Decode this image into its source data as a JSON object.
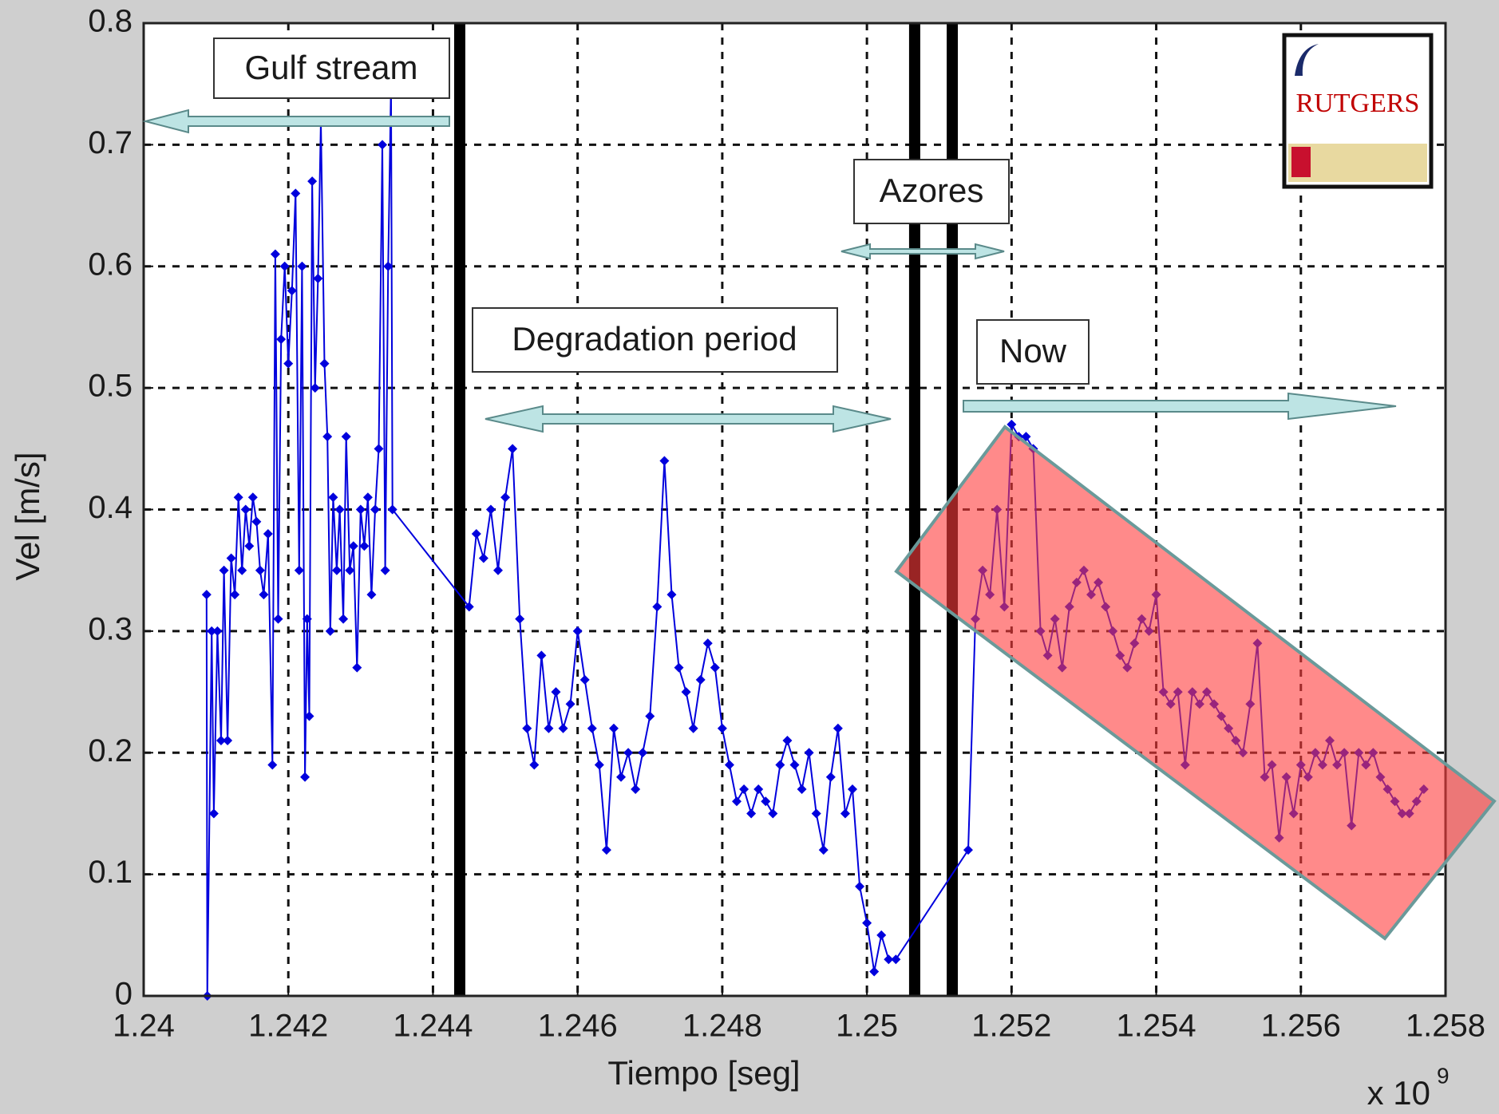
{
  "chart_data": {
    "type": "line",
    "xlabel": "Tiempo [seg]",
    "ylabel": "Vel [m/s]",
    "x_multiplier": {
      "base": "x 10",
      "exponent": "9"
    },
    "xlim": [
      1.24,
      1.258
    ],
    "ylim": [
      0,
      0.8
    ],
    "xticks": [
      1.24,
      1.242,
      1.244,
      1.246,
      1.248,
      1.25,
      1.252,
      1.254,
      1.256,
      1.258
    ],
    "yticks": [
      0,
      0.1,
      0.2,
      0.3,
      0.4,
      0.5,
      0.6,
      0.7,
      0.8
    ],
    "grid": true,
    "annotations": [
      "Gulf stream",
      "Degradation period",
      "Azores",
      "Now"
    ],
    "logo_text": "RUTGERS",
    "vlines": [
      1.24437,
      1.25066,
      1.25118
    ],
    "series": [
      {
        "name": "Vel",
        "color": "#0000dd",
        "x": [
          1.24087,
          1.24088,
          1.24094,
          1.24097,
          1.24102,
          1.24107,
          1.24111,
          1.24116,
          1.24121,
          1.24126,
          1.24131,
          1.24136,
          1.24141,
          1.24146,
          1.24151,
          1.24156,
          1.24161,
          1.24166,
          1.24172,
          1.24178,
          1.24182,
          1.24186,
          1.2419,
          1.24195,
          1.242,
          1.24205,
          1.2421,
          1.24215,
          1.24219,
          1.24223,
          1.24226,
          1.24229,
          1.24233,
          1.24237,
          1.24241,
          1.24245,
          1.2425,
          1.24254,
          1.24258,
          1.24262,
          1.24267,
          1.24271,
          1.24276,
          1.2428,
          1.24285,
          1.2429,
          1.24295,
          1.243,
          1.24305,
          1.2431,
          1.24315,
          1.2432,
          1.24325,
          1.2433,
          1.24334,
          1.24338,
          1.24342,
          1.24344,
          1.2445,
          1.2446,
          1.2447,
          1.2448,
          1.2449,
          1.245,
          1.2451,
          1.2452,
          1.2453,
          1.2454,
          1.2455,
          1.2456,
          1.2457,
          1.2458,
          1.2459,
          1.246,
          1.2461,
          1.2462,
          1.2463,
          1.2464,
          1.2465,
          1.2466,
          1.2467,
          1.2468,
          1.2469,
          1.247,
          1.2471,
          1.2472,
          1.2473,
          1.2474,
          1.2475,
          1.2476,
          1.2477,
          1.2478,
          1.2479,
          1.248,
          1.2481,
          1.2482,
          1.2483,
          1.2484,
          1.2485,
          1.2486,
          1.2487,
          1.2488,
          1.2489,
          1.249,
          1.2491,
          1.2492,
          1.2493,
          1.2494,
          1.2495,
          1.2496,
          1.2497,
          1.2498,
          1.2499,
          1.25,
          1.2501,
          1.2502,
          1.2503,
          1.2504,
          1.2514,
          1.2515,
          1.2516,
          1.2517,
          1.2518,
          1.2519,
          1.252,
          1.2521,
          1.2522,
          1.2523,
          1.2524,
          1.2525,
          1.2526,
          1.2527,
          1.2528,
          1.2529,
          1.253,
          1.2531,
          1.2532,
          1.2533,
          1.2534,
          1.2535,
          1.2536,
          1.2537,
          1.2538,
          1.2539,
          1.254,
          1.2541,
          1.2542,
          1.2543,
          1.2544,
          1.2545,
          1.2546,
          1.2547,
          1.2548,
          1.2549,
          1.255,
          1.2551,
          1.2552,
          1.2553,
          1.2554,
          1.2555,
          1.2556,
          1.2557,
          1.2558,
          1.2559,
          1.256,
          1.2561,
          1.2562,
          1.2563,
          1.2564,
          1.2565,
          1.2566,
          1.2567,
          1.2568,
          1.2569,
          1.257,
          1.2571,
          1.2572,
          1.2573,
          1.2574,
          1.2575,
          1.2576,
          1.2577
        ],
        "values": [
          0.33,
          0,
          0.3,
          0.15,
          0.3,
          0.21,
          0.35,
          0.21,
          0.36,
          0.33,
          0.41,
          0.35,
          0.4,
          0.37,
          0.41,
          0.39,
          0.35,
          0.33,
          0.38,
          0.19,
          0.61,
          0.31,
          0.54,
          0.6,
          0.52,
          0.58,
          0.66,
          0.35,
          0.6,
          0.18,
          0.31,
          0.23,
          0.67,
          0.5,
          0.59,
          0.72,
          0.52,
          0.46,
          0.3,
          0.41,
          0.35,
          0.4,
          0.31,
          0.46,
          0.35,
          0.37,
          0.27,
          0.4,
          0.37,
          0.41,
          0.33,
          0.4,
          0.45,
          0.7,
          0.35,
          0.6,
          0.75,
          0.4,
          0.32,
          0.38,
          0.36,
          0.4,
          0.35,
          0.41,
          0.45,
          0.31,
          0.22,
          0.19,
          0.28,
          0.22,
          0.25,
          0.22,
          0.24,
          0.3,
          0.26,
          0.22,
          0.19,
          0.12,
          0.22,
          0.18,
          0.2,
          0.17,
          0.2,
          0.23,
          0.32,
          0.44,
          0.33,
          0.27,
          0.25,
          0.22,
          0.26,
          0.29,
          0.27,
          0.22,
          0.19,
          0.16,
          0.17,
          0.15,
          0.17,
          0.16,
          0.15,
          0.19,
          0.21,
          0.19,
          0.17,
          0.2,
          0.15,
          0.12,
          0.18,
          0.22,
          0.15,
          0.17,
          0.09,
          0.06,
          0.02,
          0.05,
          0.03,
          0.03,
          0.12,
          0.31,
          0.35,
          0.33,
          0.4,
          0.32,
          0.47,
          0.46,
          0.46,
          0.45,
          0.3,
          0.28,
          0.31,
          0.27,
          0.32,
          0.34,
          0.35,
          0.33,
          0.34,
          0.32,
          0.3,
          0.28,
          0.27,
          0.29,
          0.31,
          0.3,
          0.33,
          0.25,
          0.24,
          0.25,
          0.19,
          0.25,
          0.24,
          0.25,
          0.24,
          0.23,
          0.22,
          0.21,
          0.2,
          0.24,
          0.29,
          0.18,
          0.19,
          0.13,
          0.18,
          0.15,
          0.19,
          0.18,
          0.2,
          0.19,
          0.21,
          0.19,
          0.2,
          0.14,
          0.2,
          0.19,
          0.2,
          0.18,
          0.17,
          0.16,
          0.15,
          0.15,
          0.16,
          0.17
        ]
      }
    ]
  }
}
